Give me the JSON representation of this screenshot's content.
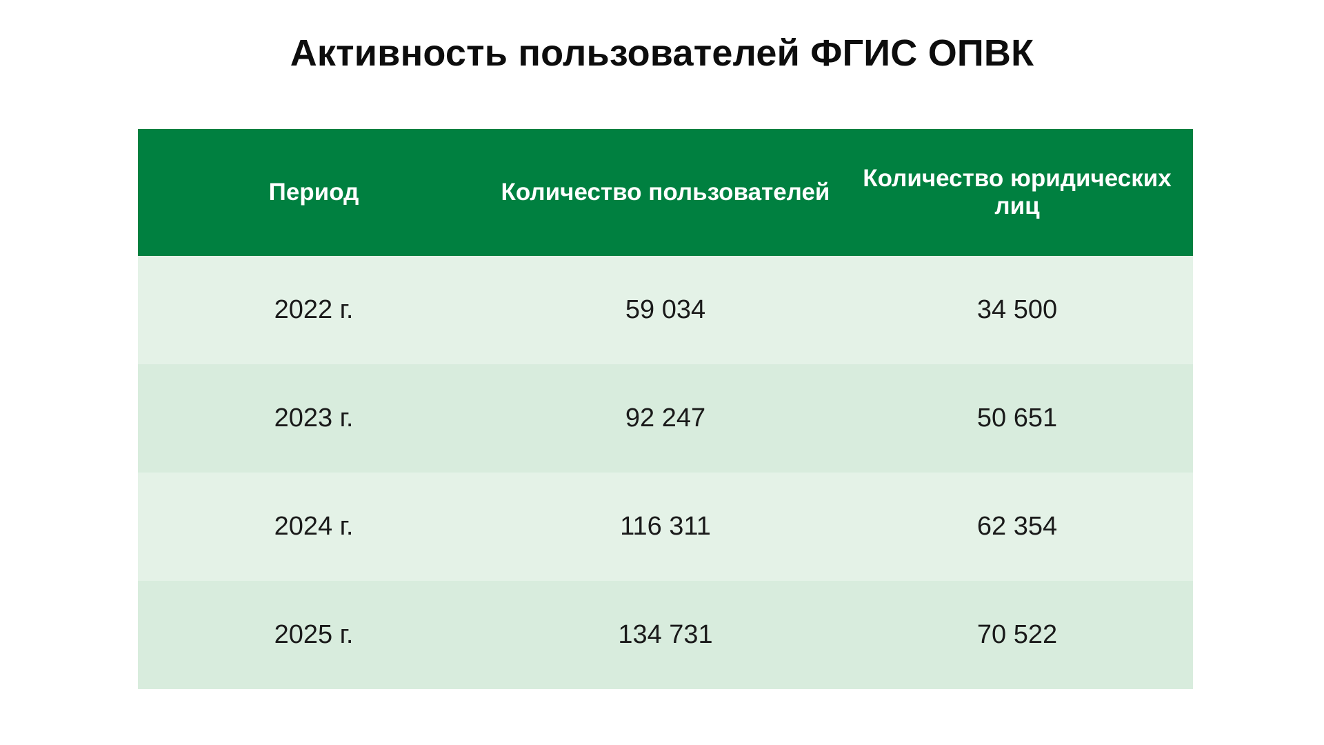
{
  "chart_data": {
    "type": "table",
    "title": "Активность пользователей ФГИС ОПВК",
    "columns": [
      "Период",
      "Количество пользователей",
      "Количество юридических лиц"
    ],
    "rows": [
      [
        "2022 г.",
        "59 034",
        "34 500"
      ],
      [
        "2023 г.",
        "92 247",
        "50 651"
      ],
      [
        "2024 г.",
        "116 311",
        "62 354"
      ],
      [
        "2025 г.",
        "134 731",
        "70 522"
      ]
    ],
    "colors": {
      "header_bg": "#008040",
      "header_text": "#ffffff",
      "row_odd_bg": "#e4f2e7",
      "row_even_bg": "#d8ecdd",
      "text": "#1a1a1a"
    }
  }
}
